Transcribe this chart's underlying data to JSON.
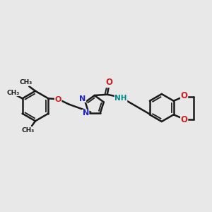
{
  "bg_color": "#e8e8e8",
  "bond_color": "#1a1a1a",
  "N_color": "#2020cc",
  "O_color": "#cc2020",
  "NH_color": "#008888",
  "figsize": [
    3.0,
    3.0
  ],
  "dpi": 100,
  "xlim": [
    0,
    12
  ],
  "ylim": [
    0,
    10
  ]
}
